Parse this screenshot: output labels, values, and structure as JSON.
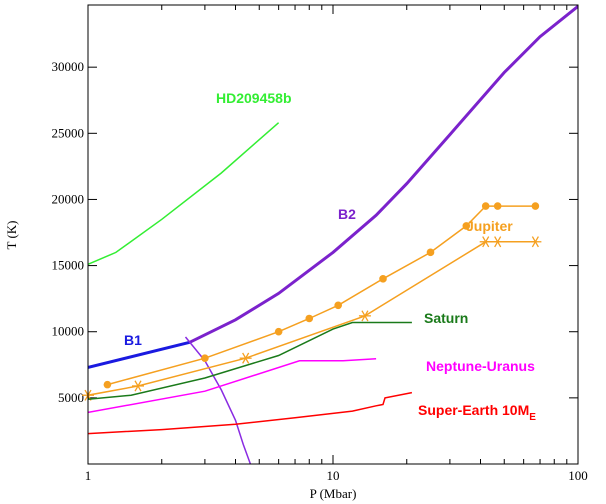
{
  "chart_data": {
    "type": "line",
    "x_label": "P (Mbar)",
    "y_label": "T (K)",
    "xscale": "log",
    "xlim": [
      1,
      100
    ],
    "xticks": [
      1,
      10,
      100
    ],
    "xticks_minor": [
      2,
      3,
      4,
      5,
      6,
      7,
      8,
      9,
      20,
      30,
      40,
      50,
      60,
      70,
      80,
      90
    ],
    "ylim": [
      0,
      34700
    ],
    "yticks": [
      5000,
      10000,
      15000,
      20000,
      25000,
      30000
    ],
    "series": [
      {
        "name": "HD209458b",
        "color": "#33ee33",
        "width": 1.5,
        "x": [
          1,
          1.3,
          2,
          3.5,
          6
        ],
        "values": [
          15100,
          16000,
          18500,
          22000,
          25800
        ]
      },
      {
        "name": "B1",
        "color": "#1a1ae0",
        "width": 3,
        "x": [
          1,
          2.6
        ],
        "values": [
          7300,
          9200
        ]
      },
      {
        "name": "B2",
        "color": "#7b22cc",
        "width": 3,
        "x": [
          2.6,
          4,
          6,
          10,
          15,
          20,
          30,
          50,
          70,
          100
        ],
        "values": [
          9200,
          10900,
          12900,
          16000,
          18800,
          21200,
          24900,
          29600,
          32300,
          34600
        ]
      },
      {
        "color": "#8a2be2",
        "width": 1.5,
        "x": [
          2.5,
          3,
          3.5,
          4,
          4.3,
          4.6
        ],
        "values": [
          9600,
          7800,
          5600,
          3300,
          1500,
          0
        ]
      },
      {
        "name": "Jupiter",
        "color": "#f5a020",
        "width": 1.5,
        "marker": "circle",
        "x": [
          1.2,
          3,
          6,
          8,
          10.5,
          16,
          25,
          35,
          42,
          47,
          67
        ],
        "values": [
          6000,
          8000,
          10000,
          11000,
          12000,
          14000,
          16000,
          18000,
          19500,
          19500,
          19500
        ]
      },
      {
        "color": "#f5a020",
        "width": 1.5,
        "marker": "star",
        "x": [
          1,
          1.6,
          4.4,
          13.5,
          42,
          47,
          67
        ],
        "values": [
          5200,
          5900,
          8000,
          11200,
          16800,
          16800,
          16800
        ]
      },
      {
        "name": "Saturn",
        "color": "#1a7a1a",
        "width": 1.5,
        "x": [
          1,
          1.5,
          3,
          6,
          10,
          12,
          21
        ],
        "values": [
          4900,
          5200,
          6500,
          8200,
          10200,
          10700,
          10700
        ]
      },
      {
        "name": "Neptune-Uranus",
        "color": "#ff00ff",
        "width": 1.5,
        "x": [
          1,
          3,
          7.3,
          11,
          15
        ],
        "values": [
          3900,
          5500,
          7800,
          7800,
          7950
        ]
      },
      {
        "name": "Super-Earth 10M",
        "name_sub": "E",
        "color": "#ff0000",
        "width": 1.5,
        "x": [
          1,
          2,
          4,
          7,
          12,
          15,
          16,
          16.3,
          21
        ],
        "values": [
          2300,
          2600,
          3000,
          3500,
          4000,
          4400,
          4500,
          5000,
          5400
        ]
      }
    ]
  }
}
